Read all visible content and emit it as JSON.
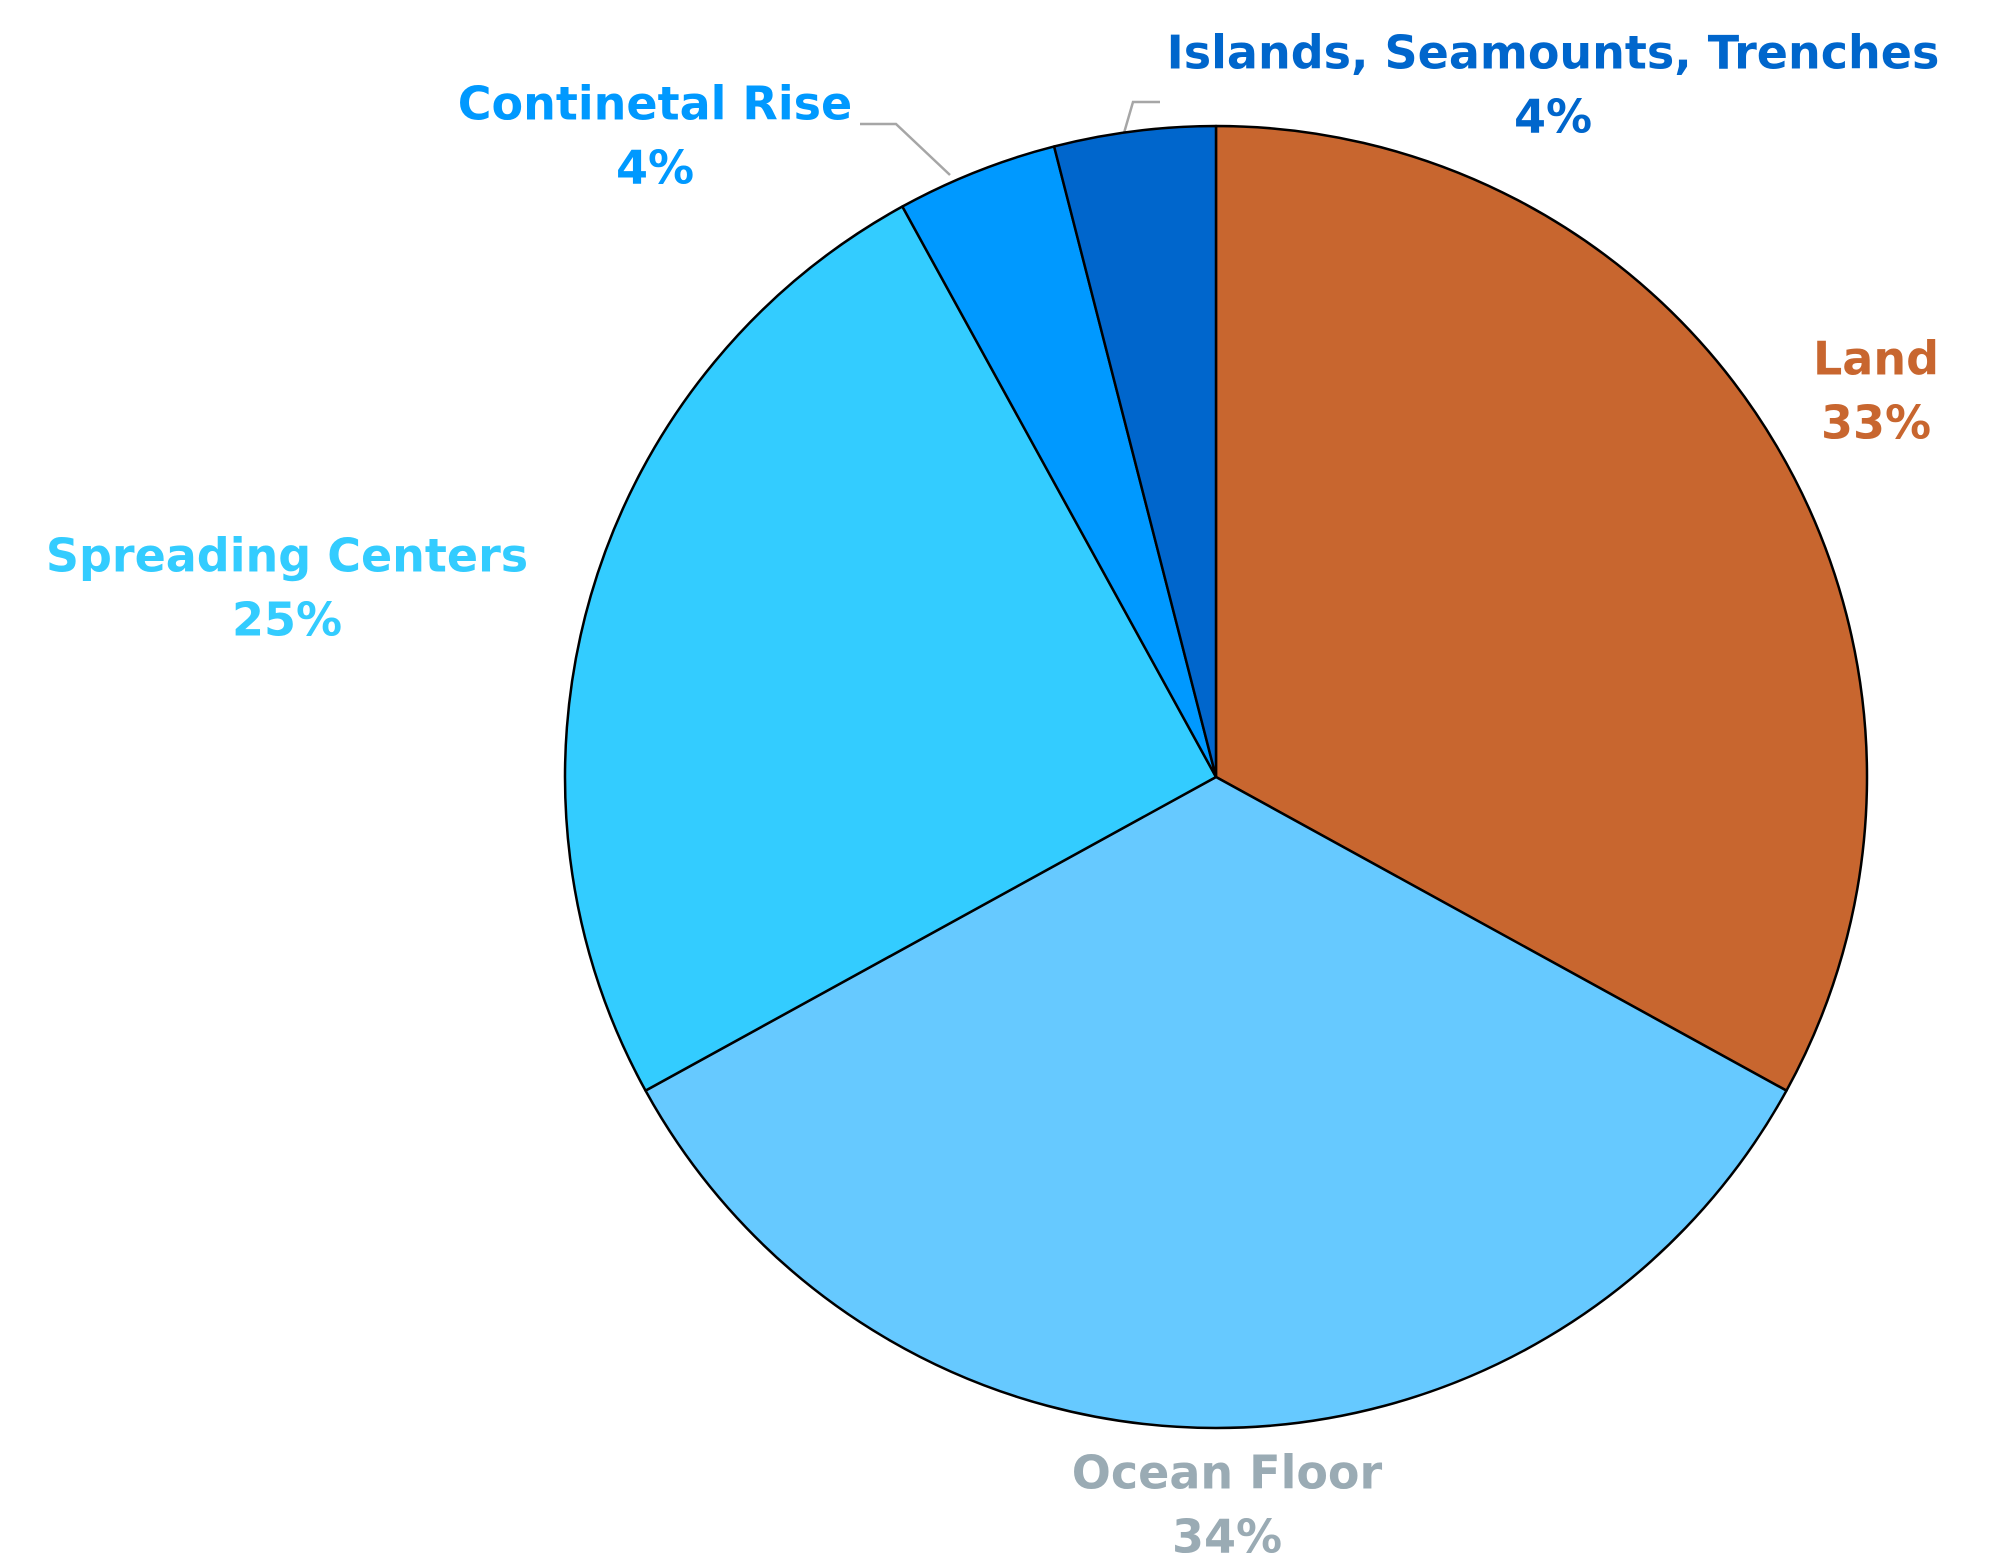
{
  "chart_data": {
    "type": "pie",
    "categories": [
      "Land",
      "Ocean Floor",
      "Spreading Centers",
      "Continetal Rise",
      "Islands, Seamounts, Trenches"
    ],
    "values": [
      33,
      34,
      25,
      4,
      4
    ],
    "value_labels": [
      "33%",
      "34%",
      "25%",
      "4%",
      "4%"
    ],
    "colors": [
      "#c8662f",
      "#66c9ff",
      "#33ccff",
      "#0099ff",
      "#0066cc"
    ],
    "label_colors": [
      "#c8662f",
      "#9aabb4",
      "#33ccff",
      "#0099ff",
      "#0066cc"
    ]
  }
}
